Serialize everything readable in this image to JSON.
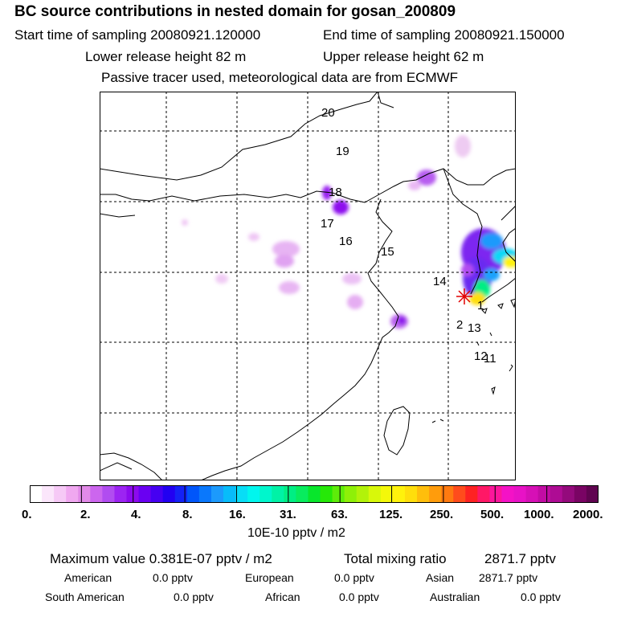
{
  "header": {
    "title": "BC  source contributions in nested domain for gosan_200809",
    "start_time": "Start time of sampling 20080921.120000",
    "end_time": "End time of sampling 20080921.150000",
    "lower_release": "Lower release height   82 m",
    "upper_release": "Upper release height   62 m",
    "tracer_info": "Passive tracer used, meteorological data are from ECMWF"
  },
  "map": {
    "trajectory_labels": [
      "20",
      "19",
      "18",
      "17",
      "16",
      "15",
      "14",
      "1",
      "2",
      "13",
      "12",
      "11"
    ],
    "receptor_marker": "star-icon"
  },
  "colorbar": {
    "ticks": [
      "0.",
      "2.",
      "4.",
      "8.",
      "16.",
      "31.",
      "63.",
      "125.",
      "250.",
      "500.",
      "1000.",
      "2000."
    ],
    "colors": [
      "#ffffff",
      "#fbe6fb",
      "#f6c9f6",
      "#f0a8f0",
      "#e28ae8",
      "#cc66ee",
      "#b14cf0",
      "#9c24f2",
      "#8c0aee",
      "#6a00f2",
      "#4600f2",
      "#2200f2",
      "#1422f6",
      "#0056fa",
      "#0a78fc",
      "#1c9afc",
      "#08bcfa",
      "#08ddf6",
      "#00f6ee",
      "#00f6cc",
      "#00f2a6",
      "#00ee84",
      "#08ec5e",
      "#08e62c",
      "#26e808",
      "#5eec0a",
      "#8ef008",
      "#b2f20a",
      "#d8f80a",
      "#f4f80a",
      "#fff20c",
      "#ffde0c",
      "#ffbe0c",
      "#ff9c0c",
      "#ff7a10",
      "#ff4c1c",
      "#fe2222",
      "#ff1866",
      "#fc169c",
      "#f412c6",
      "#e812c6",
      "#d610b6",
      "#c20ca4",
      "#ae0c94",
      "#940a7c",
      "#7a0464",
      "#600450"
    ],
    "units": "10E-10 pptv / m2"
  },
  "footer": {
    "max_label": "Maximum value  0.381E-07 pptv / m2",
    "total_label": "Total mixing ratio",
    "total_value": "2871.7 pptv",
    "american_label": "American",
    "american_value": "0.0 pptv",
    "european_label": "European",
    "european_value": "0.0 pptv",
    "asian_label": "Asian",
    "asian_value": "2871.7 pptv",
    "south_american_label": "South American",
    "south_american_value": "0.0 pptv",
    "african_label": "African",
    "african_value": "0.0 pptv",
    "australian_label": "Australian",
    "australian_value": "0.0 pptv"
  }
}
